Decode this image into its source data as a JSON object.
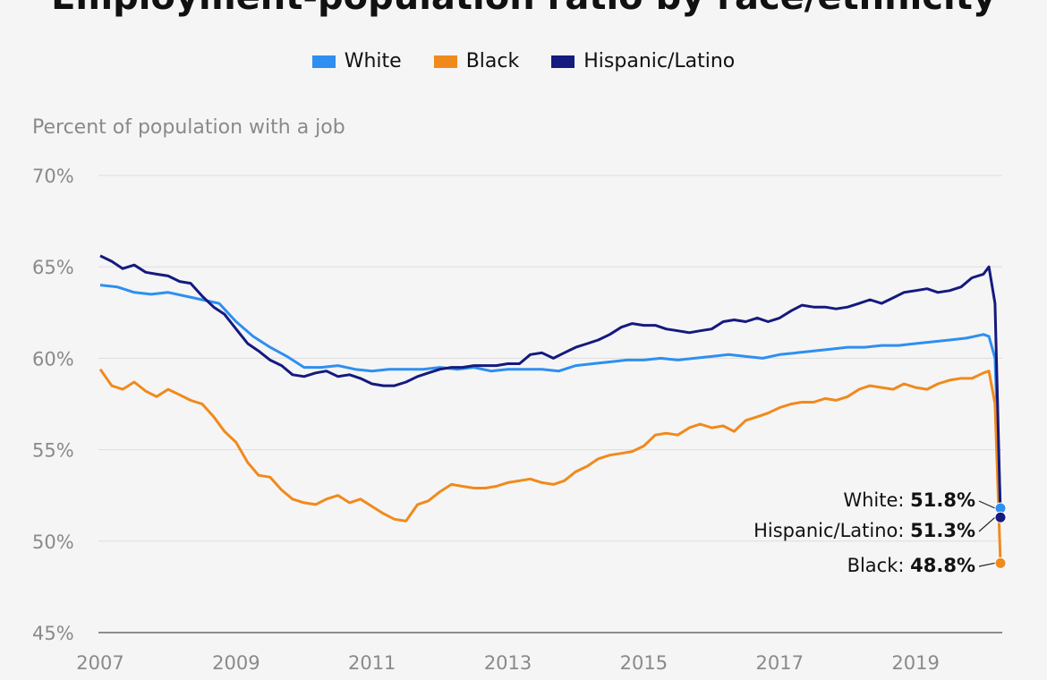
{
  "chart_data": {
    "type": "line",
    "title": "Employment-population ratio by race/ethnicity",
    "ylabel": "Percent of population with a job",
    "ylim": [
      45,
      70
    ],
    "xlim": [
      2007,
      2020.25
    ],
    "y_ticks": [
      "70%",
      "65%",
      "60%",
      "55%",
      "50%",
      "45%"
    ],
    "y_tick_values": [
      70,
      65,
      60,
      55,
      50,
      45
    ],
    "x_ticks": [
      "2007",
      "2009",
      "2011",
      "2013",
      "2015",
      "2017",
      "2019"
    ],
    "x_tick_values": [
      2007,
      2009,
      2011,
      2013,
      2015,
      2017,
      2019
    ],
    "grid": true,
    "legend": "top",
    "series": [
      {
        "name": "White",
        "color": "#2e8ff0",
        "end_label": "White:",
        "end_value": "51.8%",
        "points": [
          [
            2007.0,
            64.0
          ],
          [
            2007.25,
            63.9
          ],
          [
            2007.5,
            63.6
          ],
          [
            2007.75,
            63.5
          ],
          [
            2008.0,
            63.6
          ],
          [
            2008.25,
            63.4
          ],
          [
            2008.5,
            63.2
          ],
          [
            2008.75,
            63.0
          ],
          [
            2009.0,
            62.0
          ],
          [
            2009.25,
            61.2
          ],
          [
            2009.5,
            60.6
          ],
          [
            2009.75,
            60.1
          ],
          [
            2010.0,
            59.5
          ],
          [
            2010.25,
            59.5
          ],
          [
            2010.5,
            59.6
          ],
          [
            2010.75,
            59.4
          ],
          [
            2011.0,
            59.3
          ],
          [
            2011.25,
            59.4
          ],
          [
            2011.5,
            59.4
          ],
          [
            2011.75,
            59.4
          ],
          [
            2012.0,
            59.5
          ],
          [
            2012.25,
            59.4
          ],
          [
            2012.5,
            59.5
          ],
          [
            2012.75,
            59.3
          ],
          [
            2013.0,
            59.4
          ],
          [
            2013.25,
            59.4
          ],
          [
            2013.5,
            59.4
          ],
          [
            2013.75,
            59.3
          ],
          [
            2014.0,
            59.6
          ],
          [
            2014.25,
            59.7
          ],
          [
            2014.5,
            59.8
          ],
          [
            2014.75,
            59.9
          ],
          [
            2015.0,
            59.9
          ],
          [
            2015.25,
            60.0
          ],
          [
            2015.5,
            59.9
          ],
          [
            2015.75,
            60.0
          ],
          [
            2016.0,
            60.1
          ],
          [
            2016.25,
            60.2
          ],
          [
            2016.5,
            60.1
          ],
          [
            2016.75,
            60.0
          ],
          [
            2017.0,
            60.2
          ],
          [
            2017.25,
            60.3
          ],
          [
            2017.5,
            60.4
          ],
          [
            2017.75,
            60.5
          ],
          [
            2018.0,
            60.6
          ],
          [
            2018.25,
            60.6
          ],
          [
            2018.5,
            60.7
          ],
          [
            2018.75,
            60.7
          ],
          [
            2019.0,
            60.8
          ],
          [
            2019.25,
            60.9
          ],
          [
            2019.5,
            61.0
          ],
          [
            2019.75,
            61.1
          ],
          [
            2020.0,
            61.3
          ],
          [
            2020.08,
            61.2
          ],
          [
            2020.17,
            60.0
          ],
          [
            2020.25,
            51.8
          ]
        ]
      },
      {
        "name": "Black",
        "color": "#f08a1c",
        "end_label": "Black:",
        "end_value": "48.8%",
        "points": [
          [
            2007.0,
            59.4
          ],
          [
            2007.17,
            58.5
          ],
          [
            2007.33,
            58.3
          ],
          [
            2007.5,
            58.7
          ],
          [
            2007.67,
            58.2
          ],
          [
            2007.83,
            57.9
          ],
          [
            2008.0,
            58.3
          ],
          [
            2008.17,
            58.0
          ],
          [
            2008.33,
            57.7
          ],
          [
            2008.5,
            57.5
          ],
          [
            2008.67,
            56.8
          ],
          [
            2008.83,
            56.0
          ],
          [
            2009.0,
            55.4
          ],
          [
            2009.17,
            54.3
          ],
          [
            2009.33,
            53.6
          ],
          [
            2009.5,
            53.5
          ],
          [
            2009.67,
            52.8
          ],
          [
            2009.83,
            52.3
          ],
          [
            2010.0,
            52.1
          ],
          [
            2010.17,
            52.0
          ],
          [
            2010.33,
            52.3
          ],
          [
            2010.5,
            52.5
          ],
          [
            2010.67,
            52.1
          ],
          [
            2010.83,
            52.3
          ],
          [
            2011.0,
            51.9
          ],
          [
            2011.17,
            51.5
          ],
          [
            2011.33,
            51.2
          ],
          [
            2011.5,
            51.1
          ],
          [
            2011.67,
            52.0
          ],
          [
            2011.83,
            52.2
          ],
          [
            2012.0,
            52.7
          ],
          [
            2012.17,
            53.1
          ],
          [
            2012.33,
            53.0
          ],
          [
            2012.5,
            52.9
          ],
          [
            2012.67,
            52.9
          ],
          [
            2012.83,
            53.0
          ],
          [
            2013.0,
            53.2
          ],
          [
            2013.17,
            53.3
          ],
          [
            2013.33,
            53.4
          ],
          [
            2013.5,
            53.2
          ],
          [
            2013.67,
            53.1
          ],
          [
            2013.83,
            53.3
          ],
          [
            2014.0,
            53.8
          ],
          [
            2014.17,
            54.1
          ],
          [
            2014.33,
            54.5
          ],
          [
            2014.5,
            54.7
          ],
          [
            2014.67,
            54.8
          ],
          [
            2014.83,
            54.9
          ],
          [
            2015.0,
            55.2
          ],
          [
            2015.17,
            55.8
          ],
          [
            2015.33,
            55.9
          ],
          [
            2015.5,
            55.8
          ],
          [
            2015.67,
            56.2
          ],
          [
            2015.83,
            56.4
          ],
          [
            2016.0,
            56.2
          ],
          [
            2016.17,
            56.3
          ],
          [
            2016.33,
            56.0
          ],
          [
            2016.5,
            56.6
          ],
          [
            2016.67,
            56.8
          ],
          [
            2016.83,
            57.0
          ],
          [
            2017.0,
            57.3
          ],
          [
            2017.17,
            57.5
          ],
          [
            2017.33,
            57.6
          ],
          [
            2017.5,
            57.6
          ],
          [
            2017.67,
            57.8
          ],
          [
            2017.83,
            57.7
          ],
          [
            2018.0,
            57.9
          ],
          [
            2018.17,
            58.3
          ],
          [
            2018.33,
            58.5
          ],
          [
            2018.5,
            58.4
          ],
          [
            2018.67,
            58.3
          ],
          [
            2018.83,
            58.6
          ],
          [
            2019.0,
            58.4
          ],
          [
            2019.17,
            58.3
          ],
          [
            2019.33,
            58.6
          ],
          [
            2019.5,
            58.8
          ],
          [
            2019.67,
            58.9
          ],
          [
            2019.83,
            58.9
          ],
          [
            2020.0,
            59.2
          ],
          [
            2020.08,
            59.3
          ],
          [
            2020.17,
            57.5
          ],
          [
            2020.25,
            48.8
          ]
        ]
      },
      {
        "name": "Hispanic/Latino",
        "color": "#141a7e",
        "end_label": "Hispanic/Latino:",
        "end_value": "51.3%",
        "points": [
          [
            2007.0,
            65.6
          ],
          [
            2007.17,
            65.3
          ],
          [
            2007.33,
            64.9
          ],
          [
            2007.5,
            65.1
          ],
          [
            2007.67,
            64.7
          ],
          [
            2007.83,
            64.6
          ],
          [
            2008.0,
            64.5
          ],
          [
            2008.17,
            64.2
          ],
          [
            2008.33,
            64.1
          ],
          [
            2008.5,
            63.4
          ],
          [
            2008.67,
            62.8
          ],
          [
            2008.83,
            62.4
          ],
          [
            2009.0,
            61.6
          ],
          [
            2009.17,
            60.8
          ],
          [
            2009.33,
            60.4
          ],
          [
            2009.5,
            59.9
          ],
          [
            2009.67,
            59.6
          ],
          [
            2009.83,
            59.1
          ],
          [
            2010.0,
            59.0
          ],
          [
            2010.17,
            59.2
          ],
          [
            2010.33,
            59.3
          ],
          [
            2010.5,
            59.0
          ],
          [
            2010.67,
            59.1
          ],
          [
            2010.83,
            58.9
          ],
          [
            2011.0,
            58.6
          ],
          [
            2011.17,
            58.5
          ],
          [
            2011.33,
            58.5
          ],
          [
            2011.5,
            58.7
          ],
          [
            2011.67,
            59.0
          ],
          [
            2011.83,
            59.2
          ],
          [
            2012.0,
            59.4
          ],
          [
            2012.17,
            59.5
          ],
          [
            2012.33,
            59.5
          ],
          [
            2012.5,
            59.6
          ],
          [
            2012.67,
            59.6
          ],
          [
            2012.83,
            59.6
          ],
          [
            2013.0,
            59.7
          ],
          [
            2013.17,
            59.7
          ],
          [
            2013.33,
            60.2
          ],
          [
            2013.5,
            60.3
          ],
          [
            2013.67,
            60.0
          ],
          [
            2013.83,
            60.3
          ],
          [
            2014.0,
            60.6
          ],
          [
            2014.17,
            60.8
          ],
          [
            2014.33,
            61.0
          ],
          [
            2014.5,
            61.3
          ],
          [
            2014.67,
            61.7
          ],
          [
            2014.83,
            61.9
          ],
          [
            2015.0,
            61.8
          ],
          [
            2015.17,
            61.8
          ],
          [
            2015.33,
            61.6
          ],
          [
            2015.5,
            61.5
          ],
          [
            2015.67,
            61.4
          ],
          [
            2015.83,
            61.5
          ],
          [
            2016.0,
            61.6
          ],
          [
            2016.17,
            62.0
          ],
          [
            2016.33,
            62.1
          ],
          [
            2016.5,
            62.0
          ],
          [
            2016.67,
            62.2
          ],
          [
            2016.83,
            62.0
          ],
          [
            2017.0,
            62.2
          ],
          [
            2017.17,
            62.6
          ],
          [
            2017.33,
            62.9
          ],
          [
            2017.5,
            62.8
          ],
          [
            2017.67,
            62.8
          ],
          [
            2017.83,
            62.7
          ],
          [
            2018.0,
            62.8
          ],
          [
            2018.17,
            63.0
          ],
          [
            2018.33,
            63.2
          ],
          [
            2018.5,
            63.0
          ],
          [
            2018.67,
            63.3
          ],
          [
            2018.83,
            63.6
          ],
          [
            2019.0,
            63.7
          ],
          [
            2019.17,
            63.8
          ],
          [
            2019.33,
            63.6
          ],
          [
            2019.5,
            63.7
          ],
          [
            2019.67,
            63.9
          ],
          [
            2019.83,
            64.4
          ],
          [
            2020.0,
            64.6
          ],
          [
            2020.08,
            65.0
          ],
          [
            2020.17,
            63.0
          ],
          [
            2020.25,
            51.3
          ]
        ]
      }
    ]
  }
}
